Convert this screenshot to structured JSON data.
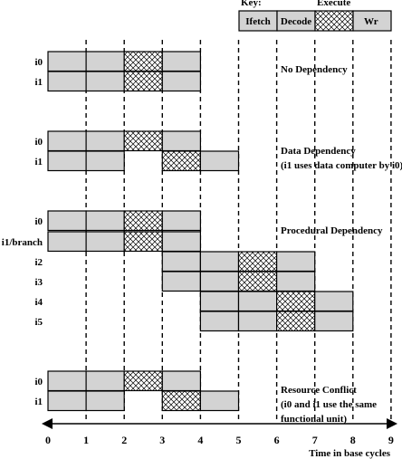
{
  "key": {
    "title": "Key:",
    "ifetch_label": "Ifetch",
    "decode_label": "Decode",
    "execute_label": "Execute",
    "writeback_label": "Wr"
  },
  "axis": {
    "label": "Time in base cycles",
    "ticks": [
      "0",
      "1",
      "2",
      "3",
      "4",
      "5",
      "6",
      "7",
      "8",
      "9"
    ]
  },
  "scenarios": [
    {
      "id": "no-dependency",
      "note_lines": [
        "No Dependency"
      ],
      "rows": [
        {
          "label": "i0",
          "start": 0,
          "stall": 0
        },
        {
          "label": "i1",
          "start": 0,
          "stall": 0
        }
      ]
    },
    {
      "id": "data-dependency",
      "note_lines": [
        "Data Dependency",
        "(i1 uses data computer by i0)"
      ],
      "rows": [
        {
          "label": "i0",
          "start": 0,
          "stall": 0
        },
        {
          "label": "i1",
          "start": 0,
          "stall": 1
        }
      ]
    },
    {
      "id": "procedural-dependency",
      "note_lines": [
        "Procedural Dependency"
      ],
      "rows": [
        {
          "label": "i0",
          "start": 0,
          "stall": 0
        },
        {
          "label": "i1/branch",
          "start": 0,
          "stall": 0
        },
        {
          "label": "i2",
          "start": 3,
          "stall": 0
        },
        {
          "label": "i3",
          "start": 3,
          "stall": 0
        },
        {
          "label": "i4",
          "start": 4,
          "stall": 0
        },
        {
          "label": "i5",
          "start": 4,
          "stall": 0
        }
      ]
    },
    {
      "id": "resource-conflict",
      "note_lines": [
        "Resource Conflict",
        "(i0 and i1 use the same",
        "functional unit)"
      ],
      "rows": [
        {
          "label": "i0",
          "start": 0,
          "stall": 0
        },
        {
          "label": "i1",
          "start": 0,
          "stall": 1
        }
      ]
    }
  ]
}
